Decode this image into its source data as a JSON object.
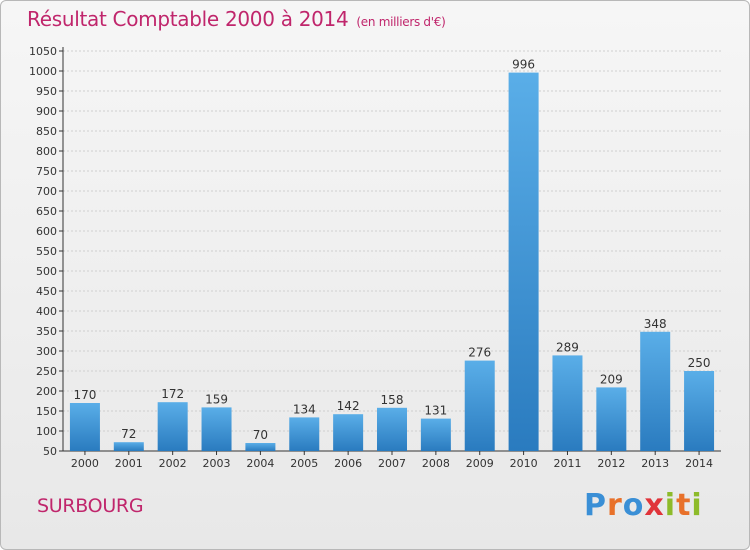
{
  "header": {
    "title": "Résultat Comptable 2000 à 2014",
    "subtitle": "(en milliers d'€)"
  },
  "footer": {
    "commune": "SURBOURG",
    "brand_letters": [
      "P",
      "r",
      "o",
      "x",
      "i",
      "t",
      "i"
    ],
    "brand_colors": [
      "#3a8fd6",
      "#e8712a",
      "#3a8fd6",
      "#e0343a",
      "#8dbb2a",
      "#e8712a",
      "#8dbb2a"
    ]
  },
  "chart_data": {
    "type": "bar",
    "title": "Résultat Comptable 2000 à 2014",
    "unit": "(en milliers d'€)",
    "categories": [
      "2000",
      "2001",
      "2002",
      "2003",
      "2004",
      "2005",
      "2006",
      "2007",
      "2008",
      "2009",
      "2010",
      "2011",
      "2012",
      "2013",
      "2014"
    ],
    "values": [
      170,
      72,
      172,
      159,
      70,
      134,
      142,
      158,
      131,
      276,
      996,
      289,
      209,
      348,
      250
    ],
    "value_labels": [
      "170",
      "72",
      "172",
      "159",
      "70",
      "134",
      "142",
      "158",
      "131",
      "276",
      "996",
      "289",
      "209",
      "348",
      "250"
    ],
    "ylim": [
      50,
      1050
    ],
    "yticks": [
      50,
      100,
      150,
      200,
      250,
      300,
      350,
      400,
      450,
      500,
      550,
      600,
      650,
      700,
      750,
      800,
      850,
      900,
      950,
      1000,
      1050
    ],
    "ytick_labels": [
      "50",
      "100",
      "150",
      "200",
      "250",
      "300",
      "350",
      "400",
      "450",
      "500",
      "550",
      "600",
      "650",
      "700",
      "750",
      "800",
      "850",
      "900",
      "950",
      "1000",
      "1050"
    ],
    "grid": true,
    "bar_color_top": "#5aaee8",
    "bar_color_bottom": "#2a7bbf",
    "xlabel": "",
    "ylabel": ""
  }
}
